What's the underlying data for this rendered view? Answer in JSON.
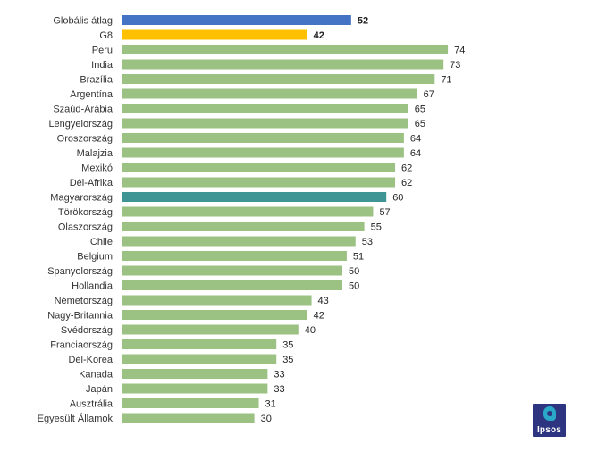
{
  "chart_data": {
    "type": "bar",
    "orientation": "horizontal",
    "title": "",
    "xlabel": "",
    "ylabel": "",
    "xlim": [
      0,
      80
    ],
    "grid": false,
    "categories": [
      "Globális átlag",
      "G8",
      "Peru",
      "India",
      "Brazília",
      "Argentína",
      "Szaúd-Arábia",
      "Lengyelország",
      "Oroszország",
      "Malajzia",
      "Mexikó",
      "Dél-Afrika",
      "Magyarország",
      "Törökország",
      "Olaszország",
      "Chile",
      "Belgium",
      "Spanyolország",
      "Hollandia",
      "Németország",
      "Nagy-Britannia",
      "Svédország",
      "Franciaország",
      "Dél-Korea",
      "Kanada",
      "Japán",
      "Ausztrália",
      "Egyesült Államok"
    ],
    "values": [
      52,
      42,
      74,
      73,
      71,
      67,
      65,
      65,
      64,
      64,
      62,
      62,
      60,
      57,
      55,
      53,
      51,
      50,
      50,
      43,
      42,
      40,
      35,
      35,
      33,
      33,
      31,
      30
    ],
    "value_labels": [
      "52",
      "42",
      "74",
      "73",
      "71",
      "67",
      "65",
      "65",
      "64",
      "64",
      "62",
      "62",
      "60",
      "57",
      "55",
      "53",
      "51",
      "50",
      "50",
      "43",
      "42",
      "40",
      "35",
      "35",
      "33",
      "33",
      "31",
      "30"
    ],
    "bar_colors": [
      "#4472c4",
      "#ffc000",
      "#9bc283",
      "#9bc283",
      "#9bc283",
      "#9bc283",
      "#9bc283",
      "#9bc283",
      "#9bc283",
      "#9bc283",
      "#9bc283",
      "#9bc283",
      "#3e9594",
      "#9bc283",
      "#9bc283",
      "#9bc283",
      "#9bc283",
      "#9bc283",
      "#9bc283",
      "#9bc283",
      "#9bc283",
      "#9bc283",
      "#9bc283",
      "#9bc283",
      "#9bc283",
      "#9bc283",
      "#9bc283",
      "#9bc283"
    ],
    "bold_value_labels": [
      true,
      true,
      false,
      false,
      false,
      false,
      false,
      false,
      false,
      false,
      false,
      false,
      false,
      false,
      false,
      false,
      false,
      false,
      false,
      false,
      false,
      false,
      false,
      false,
      false,
      false,
      false,
      false
    ]
  },
  "logo": {
    "text": "Ipsos",
    "colors": {
      "background": "#2e3580",
      "mark": "#2aa8c8"
    }
  }
}
